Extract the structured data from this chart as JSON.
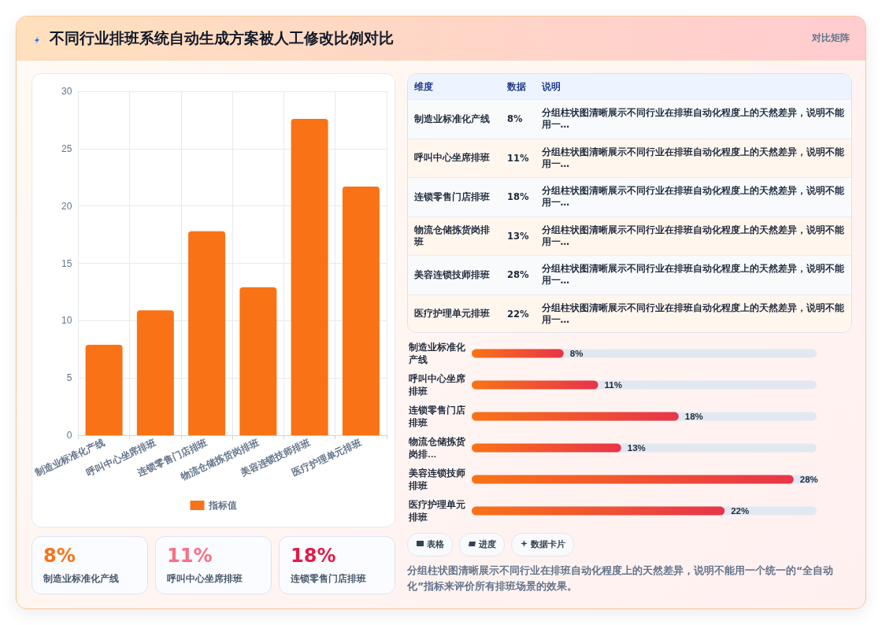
{
  "chart_data": [
    {
      "type": "other",
      "title": "不同行业排班系统自动生成方案被人工修改比例对比",
      "subtitle": "对比矩阵"
    },
    {
      "type": "bar",
      "categories": [
        "制造业标准化产线",
        "呼叫中心坐席排班",
        "连锁零售门店排班",
        "物流仓储拣货岗排班",
        "美容连锁技师排班",
        "医疗护理单元排班"
      ],
      "series": [
        {
          "name": "指标值",
          "color": "#f97316",
          "values": [
            7.9,
            10.9,
            17.8,
            12.9,
            27.6,
            21.7
          ]
        }
      ],
      "ylim": [
        0,
        30
      ],
      "yticks": [
        0,
        5,
        10,
        15,
        20,
        25,
        30
      ],
      "grid": true,
      "legend": "bottom"
    },
    {
      "type": "other",
      "categories": [
        "制造业标准化产线",
        "呼叫中心坐席排班",
        "连锁零售门店排班",
        "物流仓储拣货岗排班",
        "美容连锁技师排班",
        "医疗护理单元排班"
      ],
      "values": [
        8,
        11,
        18,
        13,
        28,
        22
      ],
      "value_labels": [
        "8%",
        "11%",
        "18%",
        "13%",
        "28%",
        "22%"
      ],
      "annotations": [
        "维度",
        "数据",
        "说明",
        "分组柱状图清晰展示不同行业在排班自动化程度上的天然差异，说明不能用一…",
        "分组柱状图清晰展示不同行业在排班自动化程度上的天然差异，说明不能用一…",
        "分组柱状图清晰展示不同行业在排班自动化程度上的天然差异，说明不能用一…",
        "分组柱状图清晰展示不同行业在排班自动化程度上的天然差异，说明不能用一…",
        "分组柱状图清晰展示不同行业在排班自动化程度上的天然差异，说明不能用一…",
        "分组柱状图清晰展示不同行业在排班自动化程度上的天然差异，说明不能用一…"
      ]
    },
    {
      "type": "bar",
      "orientation": "horizontal",
      "categories": [
        "制造业标准化产线",
        "呼叫中心坐席排班",
        "连锁零售门店排班",
        "物流仓储拣货岗排…",
        "美容连锁技师排班",
        "医疗护理单元排班"
      ],
      "values": [
        8,
        11,
        18,
        13,
        28,
        22
      ],
      "value_labels": [
        "8%",
        "11%",
        "18%",
        "13%",
        "28%",
        "22%"
      ],
      "color": "#e8344a",
      "tick_labels": "y"
    },
    {
      "type": "other",
      "categories": [
        "制造业标准化产线",
        "呼叫中心坐席排班",
        "连锁零售门店排班"
      ],
      "value_labels": [
        "8%",
        "11%",
        "18%"
      ]
    },
    {
      "type": "other",
      "categories": [
        "表格",
        "进度",
        "数据卡片"
      ],
      "annotations": [
        "分组柱状图清晰展示不同行业在排班自动化程度上的天然差异，说明不能用一个统一的“全自动化”指标来评价所有排班场景的效果。"
      ]
    }
  ]
}
